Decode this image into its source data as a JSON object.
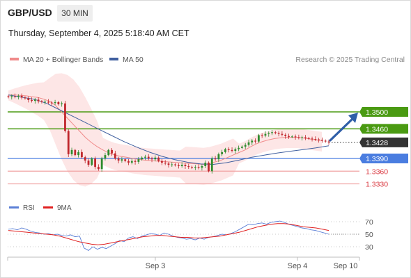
{
  "header": {
    "symbol": "GBP/USD",
    "timeframe": "30 MIN",
    "datetime": "Thursday, September 4, 2025 5:18:40 AM CET"
  },
  "legend": {
    "items": [
      {
        "label": "MA 20 + Bollinger Bands",
        "color": "#f08a8a"
      },
      {
        "label": "MA 50",
        "color": "#3f5f9f"
      }
    ],
    "credit": "Research © 2025 Trading Central"
  },
  "colors": {
    "candle_up": "#2e8b2e",
    "candle_down": "#c0272d",
    "resistance": "#4a9a12",
    "current_price": "#333333",
    "pivot": "#4a7de0",
    "support": "#f0a0a0",
    "forecast_arrow": "#2f5ea8",
    "bollinger_fill": "#fde3e3",
    "ma20": "#f08a8a",
    "ma50": "#3f5f9f",
    "rsi": "#5b7fd6",
    "rsi_ma": "#e02020"
  },
  "chart_data": [
    {
      "type": "candlestick",
      "title": "GBP/USD",
      "x_tick_labels": [
        "Sep 3",
        "Sep 4",
        "Sep 10"
      ],
      "price_levels": [
        {
          "value": 1.35,
          "label": "1.3500",
          "kind": "resistance"
        },
        {
          "value": 1.346,
          "label": "1.3460",
          "kind": "resistance"
        },
        {
          "value": 1.3428,
          "label": "1.3428",
          "kind": "current"
        },
        {
          "value": 1.339,
          "label": "1.3390",
          "kind": "pivot"
        },
        {
          "value": 1.336,
          "label": "1.3360",
          "kind": "support"
        },
        {
          "value": 1.333,
          "label": "1.3330",
          "kind": "support"
        }
      ],
      "ylim": [
        1.322,
        1.358
      ],
      "close_series": [
        1.3535,
        1.3537,
        1.3536,
        1.3538,
        1.3534,
        1.3532,
        1.3528,
        1.3526,
        1.3529,
        1.3525,
        1.3523,
        1.3524,
        1.3522,
        1.3521,
        1.3523,
        1.3518,
        1.352,
        1.3455,
        1.34,
        1.341,
        1.3398,
        1.3405,
        1.3393,
        1.3385,
        1.3375,
        1.339,
        1.337,
        1.3365,
        1.339,
        1.3398,
        1.341,
        1.3402,
        1.339,
        1.3385,
        1.3388,
        1.3384,
        1.338,
        1.3384,
        1.3382,
        1.3388,
        1.3392,
        1.3394,
        1.339,
        1.3388,
        1.3392,
        1.3384,
        1.338,
        1.3378,
        1.3375,
        1.3376,
        1.3374,
        1.3372,
        1.3375,
        1.3372,
        1.337,
        1.3368,
        1.337,
        1.3368,
        1.3372,
        1.338,
        1.336,
        1.339,
        1.3388,
        1.34,
        1.3405,
        1.3412,
        1.341,
        1.3408,
        1.3412,
        1.3415,
        1.3418,
        1.3422,
        1.3428,
        1.3432,
        1.343,
        1.3445,
        1.3444,
        1.3448,
        1.345,
        1.3452,
        1.345,
        1.3448,
        1.3446,
        1.3443,
        1.3441,
        1.3442,
        1.344,
        1.3439,
        1.344,
        1.3438,
        1.3437,
        1.3436,
        1.3435,
        1.3434,
        1.3432,
        1.343,
        1.3428
      ],
      "ma20_series": [
        1.354,
        1.354,
        1.3539,
        1.3538,
        1.3536,
        1.3534,
        1.353,
        1.3525,
        1.3515,
        1.35,
        1.3485,
        1.347,
        1.3455,
        1.344,
        1.3428,
        1.3418,
        1.341,
        1.3403,
        1.3398,
        1.3395,
        1.3393,
        1.339,
        1.3388,
        1.3386,
        1.3385,
        1.3384,
        1.3383,
        1.3382,
        1.3381,
        1.338,
        1.3379,
        1.3378,
        1.3377,
        1.3376,
        1.3378,
        1.3382,
        1.3386,
        1.3392,
        1.3398,
        1.3404,
        1.341,
        1.3418,
        1.3425,
        1.343,
        1.3434,
        1.3437,
        1.3439,
        1.344,
        1.344,
        1.344,
        1.3438,
        1.3436,
        1.3434,
        1.3432
      ],
      "ma50_series": [
        1.354,
        1.3535,
        1.353,
        1.352,
        1.3505,
        1.349,
        1.3475,
        1.346,
        1.3445,
        1.343,
        1.3417,
        1.3405,
        1.3395,
        1.3387,
        1.3381,
        1.3377,
        1.3376,
        1.338,
        1.3386,
        1.3393,
        1.3398,
        1.3403,
        1.3407,
        1.3411,
        1.3415,
        1.342
      ]
    },
    {
      "type": "line",
      "title": "RSI",
      "series": [
        {
          "name": "RSI",
          "values": [
            58,
            59,
            57,
            60,
            58,
            55,
            53,
            52,
            50,
            51,
            49,
            50,
            48,
            47,
            49,
            46,
            47,
            28,
            24,
            30,
            26,
            29,
            27,
            31,
            35,
            40,
            38,
            44,
            46,
            43,
            47,
            49,
            51,
            50,
            48,
            52,
            50,
            47,
            45,
            44,
            42,
            43,
            41,
            44,
            42,
            45,
            46,
            48,
            50,
            49,
            51,
            54,
            58,
            62,
            66,
            65,
            67,
            68,
            66,
            69,
            70,
            71,
            69,
            66,
            64,
            62,
            60,
            59,
            57,
            56,
            54,
            52,
            50
          ]
        },
        {
          "name": "9MA",
          "values": [
            56,
            55,
            54,
            53,
            52,
            51,
            50,
            49,
            47,
            44,
            41,
            38,
            36,
            34,
            33,
            34,
            36,
            38,
            40,
            42,
            44,
            46,
            47,
            48,
            48,
            47,
            46,
            45,
            45,
            44,
            44,
            45,
            46,
            47,
            49,
            51,
            53,
            56,
            59,
            62,
            64,
            66,
            67,
            67,
            66,
            64,
            62,
            61,
            60,
            58,
            56
          ]
        }
      ],
      "y_ticks": [
        70,
        50,
        30
      ],
      "ylim": [
        20,
        80
      ]
    }
  ]
}
